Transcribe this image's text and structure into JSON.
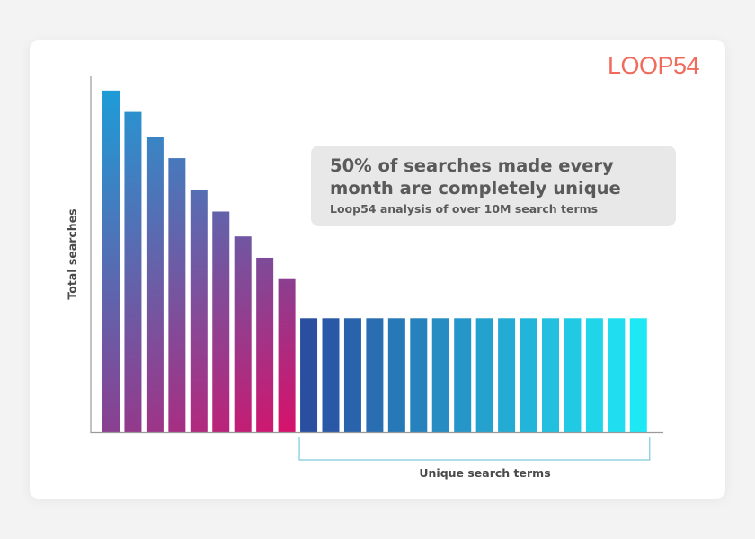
{
  "logo": {
    "text": "LOOP54"
  },
  "callout": {
    "headline_line1": "50% of searches made every",
    "headline_line2": "month are completely unique",
    "subtitle": "Loop54 analysis of over 10M search terms"
  },
  "colors": {
    "logo": "#f06b5c",
    "head_gradient_top": [
      "#1e9cd7",
      "#8b3f90"
    ],
    "head_gradient_bottom": [
      "#8b3f90",
      "#d6126b"
    ],
    "tail_gradient": [
      "#2a4fa0",
      "#1fe8f5"
    ],
    "bracket": "#5fc1d6",
    "axis": "#9a9a9a"
  },
  "chart_data": {
    "type": "bar",
    "ylabel": "Total searches",
    "xlabel": "Unique search terms",
    "ylim": [
      0,
      100
    ],
    "grid": false,
    "legend": "none",
    "series": [
      {
        "values": [
          96,
          90,
          83,
          77,
          68,
          62,
          55,
          49,
          43,
          32,
          32,
          32,
          32,
          32,
          32,
          32,
          32,
          32,
          32,
          32,
          32,
          32,
          32,
          32,
          32
        ]
      }
    ],
    "head_count": 9,
    "bracket_groups": [
      {
        "label": "Unique search terms",
        "from_index": 9,
        "to_index": 24
      }
    ]
  }
}
